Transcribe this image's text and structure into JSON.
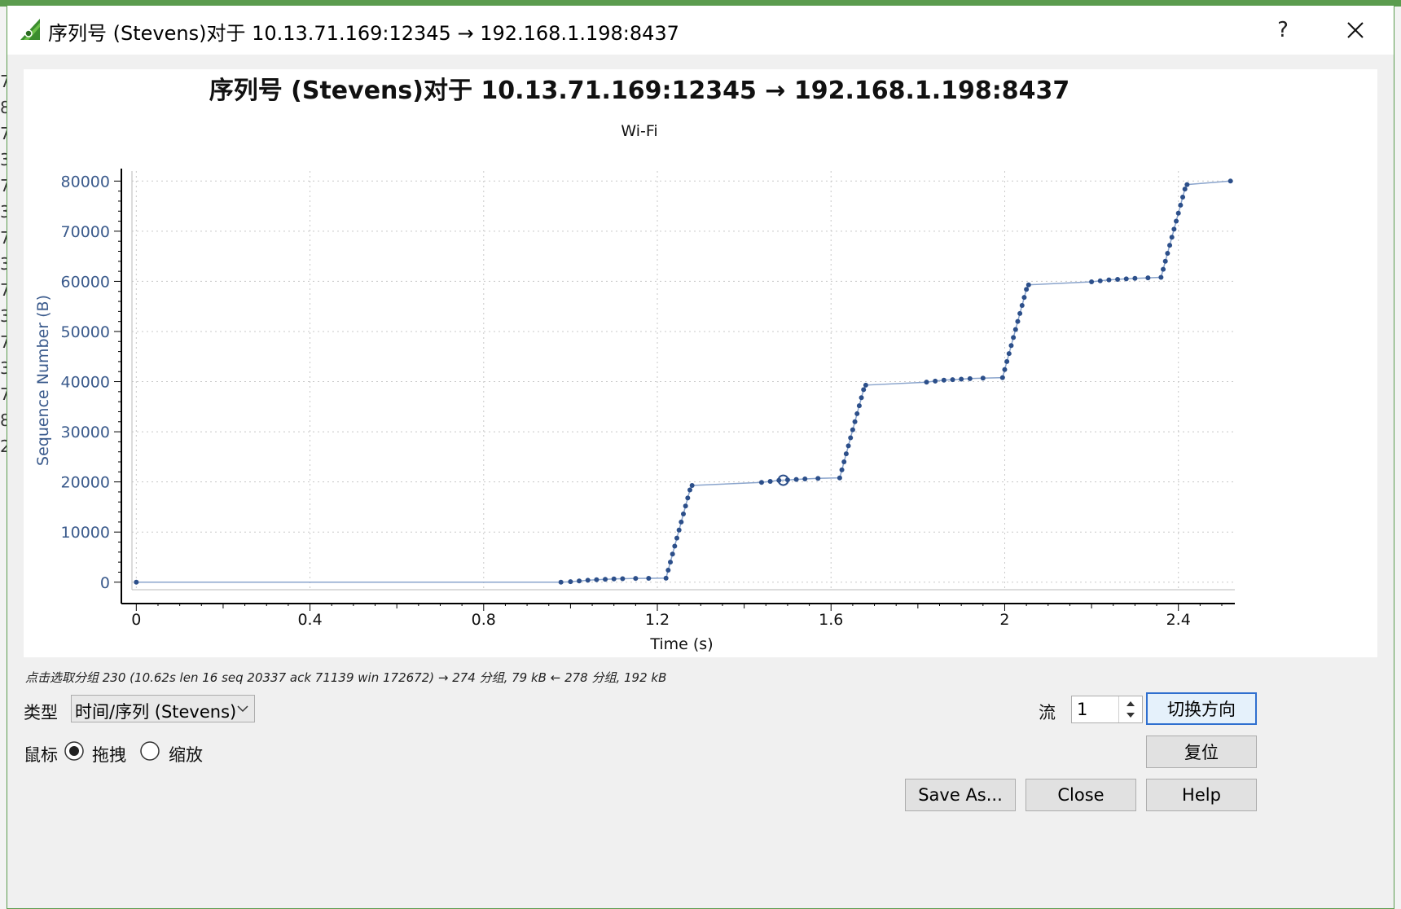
{
  "window": {
    "title": "序列号 (Stevens)对于 10.13.71.169:12345 → 192.168.1.198:8437",
    "help_glyph": "?",
    "app_icon": "wireshark-fin-icon",
    "accent": "#5b9c4e"
  },
  "background_glyphs": [
    "7",
    "8",
    "7",
    "3",
    "7",
    "3",
    "7",
    "3",
    "7",
    "3",
    "7",
    "3",
    "7",
    "8",
    "2"
  ],
  "chart_data": {
    "type": "scatter",
    "title": "序列号 (Stevens)对于 10.13.71.169:12345 → 192.168.1.198:8437",
    "subtitle": "Wi-Fi",
    "xlabel": "Time (s)",
    "ylabel": "Sequence Number (B)",
    "xlim": [
      -0.01,
      2.53
    ],
    "ylim": [
      -1500,
      82000
    ],
    "xticks": [
      0,
      0.4,
      0.8,
      1.2,
      1.6,
      2,
      2.4
    ],
    "xtick_labels": [
      "0",
      "0.4",
      "0.8",
      "1.2",
      "1.6",
      "2",
      "2.4"
    ],
    "yticks": [
      0,
      10000,
      20000,
      30000,
      40000,
      50000,
      60000,
      70000,
      80000
    ],
    "ytick_labels": [
      "0",
      "10000",
      "20000",
      "30000",
      "40000",
      "50000",
      "60000",
      "70000",
      "80000"
    ],
    "grid": true,
    "color": "#2c4f8a",
    "line_color": "#8aa4cc",
    "points": [
      [
        0.0,
        0
      ],
      [
        0.978,
        0
      ],
      [
        1.0,
        100
      ],
      [
        1.02,
        250
      ],
      [
        1.04,
        380
      ],
      [
        1.06,
        500
      ],
      [
        1.08,
        580
      ],
      [
        1.1,
        650
      ],
      [
        1.12,
        700
      ],
      [
        1.15,
        750
      ],
      [
        1.18,
        780
      ],
      [
        1.22,
        800
      ],
      [
        1.225,
        2400
      ],
      [
        1.23,
        4000
      ],
      [
        1.235,
        5600
      ],
      [
        1.24,
        7200
      ],
      [
        1.245,
        8800
      ],
      [
        1.25,
        10400
      ],
      [
        1.255,
        12000
      ],
      [
        1.26,
        13600
      ],
      [
        1.265,
        15200
      ],
      [
        1.27,
        16800
      ],
      [
        1.275,
        18400
      ],
      [
        1.28,
        19300
      ],
      [
        1.44,
        19900
      ],
      [
        1.46,
        20100
      ],
      [
        1.48,
        20300
      ],
      [
        1.5,
        20400
      ],
      [
        1.52,
        20500
      ],
      [
        1.54,
        20600
      ],
      [
        1.57,
        20700
      ],
      [
        1.62,
        20800
      ],
      [
        1.625,
        22400
      ],
      [
        1.63,
        24000
      ],
      [
        1.635,
        25600
      ],
      [
        1.64,
        27200
      ],
      [
        1.645,
        28800
      ],
      [
        1.65,
        30400
      ],
      [
        1.655,
        32000
      ],
      [
        1.66,
        33600
      ],
      [
        1.665,
        35200
      ],
      [
        1.67,
        36800
      ],
      [
        1.675,
        38400
      ],
      [
        1.68,
        39300
      ],
      [
        1.82,
        39900
      ],
      [
        1.84,
        40100
      ],
      [
        1.86,
        40300
      ],
      [
        1.88,
        40400
      ],
      [
        1.9,
        40500
      ],
      [
        1.92,
        40600
      ],
      [
        1.95,
        40700
      ],
      [
        1.995,
        40800
      ],
      [
        2.0,
        42400
      ],
      [
        2.005,
        44000
      ],
      [
        2.01,
        45600
      ],
      [
        2.015,
        47200
      ],
      [
        2.02,
        48800
      ],
      [
        2.025,
        50400
      ],
      [
        2.03,
        52000
      ],
      [
        2.035,
        53600
      ],
      [
        2.04,
        55200
      ],
      [
        2.045,
        56800
      ],
      [
        2.05,
        58400
      ],
      [
        2.055,
        59300
      ],
      [
        2.2,
        59900
      ],
      [
        2.22,
        60100
      ],
      [
        2.24,
        60300
      ],
      [
        2.26,
        60400
      ],
      [
        2.28,
        60500
      ],
      [
        2.3,
        60600
      ],
      [
        2.33,
        60700
      ],
      [
        2.36,
        60800
      ],
      [
        2.365,
        62400
      ],
      [
        2.37,
        64000
      ],
      [
        2.375,
        65600
      ],
      [
        2.38,
        67200
      ],
      [
        2.385,
        68800
      ],
      [
        2.39,
        70400
      ],
      [
        2.395,
        72000
      ],
      [
        2.4,
        73600
      ],
      [
        2.405,
        75200
      ],
      [
        2.41,
        76800
      ],
      [
        2.415,
        78400
      ],
      [
        2.42,
        79300
      ],
      [
        2.52,
        80000
      ]
    ],
    "highlight_point": [
      1.49,
      20337
    ]
  },
  "status": {
    "text": "点击选取分组 230 (10.62s len 16 seq 20337 ack 71139 win 172672) → 274 分组, 79 kB ← 278 分组, 192 kB"
  },
  "controls": {
    "type_label": "类型",
    "type_value": "时间/序列 (Stevens)",
    "mouse_label": "鼠标",
    "mouse_options": [
      "拖拽",
      "缩放"
    ],
    "mouse_selected": "拖拽",
    "stream_label": "流",
    "stream_value": "1"
  },
  "buttons": {
    "switch_direction": "切换方向",
    "reset": "复位",
    "save_as": "Save As...",
    "close": "Close",
    "help": "Help"
  }
}
